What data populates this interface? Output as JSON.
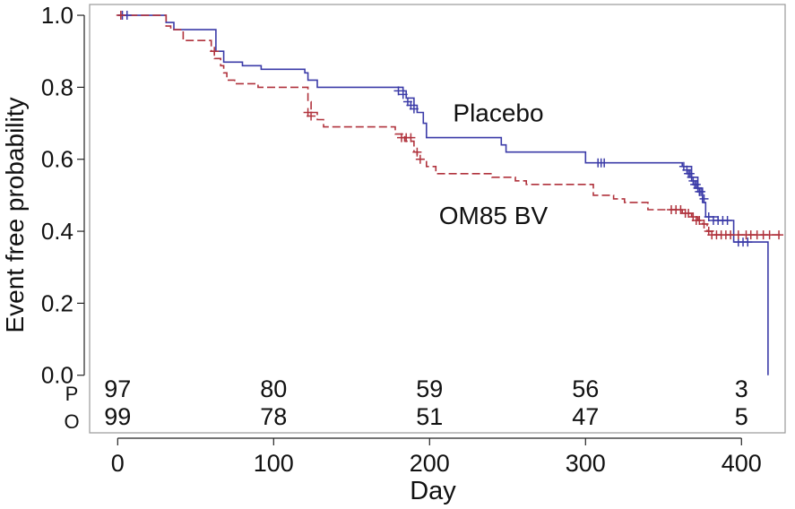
{
  "chart_data": {
    "type": "line",
    "step": true,
    "xlabel": "Day",
    "ylabel": "Event free probability",
    "xlim": [
      -18,
      428
    ],
    "ylim": [
      -0.16,
      1.03
    ],
    "x_ticks": [
      0,
      100,
      200,
      300,
      400
    ],
    "x_tick_labels": [
      "0",
      "100",
      "200",
      "300",
      "400"
    ],
    "y_ticks": [
      0.0,
      0.2,
      0.4,
      0.6,
      0.8,
      1.0
    ],
    "y_tick_labels": [
      "0.0",
      "0.2",
      "0.4",
      "0.6",
      "0.8",
      "1.0"
    ],
    "grid": false,
    "series": [
      {
        "name": "Placebo",
        "color": "#3b3ba8",
        "dash": "solid",
        "points": [
          [
            0,
            1.0
          ],
          [
            31,
            1.0
          ],
          [
            31,
            0.98
          ],
          [
            36,
            0.98
          ],
          [
            36,
            0.96
          ],
          [
            63,
            0.96
          ],
          [
            63,
            0.9
          ],
          [
            68,
            0.9
          ],
          [
            68,
            0.87
          ],
          [
            80,
            0.87
          ],
          [
            80,
            0.86
          ],
          [
            92,
            0.86
          ],
          [
            92,
            0.85
          ],
          [
            120,
            0.85
          ],
          [
            120,
            0.84
          ],
          [
            122,
            0.84
          ],
          [
            122,
            0.82
          ],
          [
            128,
            0.82
          ],
          [
            128,
            0.8
          ],
          [
            183,
            0.8
          ],
          [
            183,
            0.79
          ],
          [
            185,
            0.79
          ],
          [
            185,
            0.77
          ],
          [
            190,
            0.77
          ],
          [
            190,
            0.75
          ],
          [
            192,
            0.75
          ],
          [
            192,
            0.73
          ],
          [
            196,
            0.73
          ],
          [
            196,
            0.7
          ],
          [
            198,
            0.7
          ],
          [
            198,
            0.66
          ],
          [
            246,
            0.66
          ],
          [
            246,
            0.64
          ],
          [
            249,
            0.64
          ],
          [
            249,
            0.62
          ],
          [
            300,
            0.62
          ],
          [
            300,
            0.59
          ],
          [
            362,
            0.59
          ],
          [
            362,
            0.58
          ],
          [
            368,
            0.58
          ],
          [
            368,
            0.55
          ],
          [
            372,
            0.55
          ],
          [
            372,
            0.52
          ],
          [
            375,
            0.52
          ],
          [
            375,
            0.48
          ],
          [
            377,
            0.48
          ],
          [
            377,
            0.44
          ],
          [
            385,
            0.44
          ],
          [
            385,
            0.43
          ],
          [
            395,
            0.43
          ],
          [
            395,
            0.37
          ],
          [
            417,
            0.37
          ],
          [
            417,
            0.0
          ]
        ],
        "censored": [
          [
            3,
            1.0
          ],
          [
            6,
            1.0
          ],
          [
            180,
            0.79
          ],
          [
            183,
            0.78
          ],
          [
            186,
            0.76
          ],
          [
            188,
            0.75
          ],
          [
            190,
            0.74
          ],
          [
            308,
            0.59
          ],
          [
            310,
            0.59
          ],
          [
            312,
            0.59
          ],
          [
            363,
            0.58
          ],
          [
            365,
            0.57
          ],
          [
            366,
            0.56
          ],
          [
            367,
            0.56
          ],
          [
            368,
            0.55
          ],
          [
            369,
            0.54
          ],
          [
            370,
            0.53
          ],
          [
            371,
            0.53
          ],
          [
            372,
            0.52
          ],
          [
            373,
            0.51
          ],
          [
            374,
            0.51
          ],
          [
            376,
            0.49
          ],
          [
            379,
            0.44
          ],
          [
            382,
            0.43
          ],
          [
            385,
            0.43
          ],
          [
            388,
            0.43
          ],
          [
            391,
            0.43
          ],
          [
            398,
            0.37
          ],
          [
            401,
            0.37
          ],
          [
            404,
            0.37
          ]
        ],
        "at_risk": [
          97,
          80,
          59,
          56,
          3
        ],
        "at_risk_row_label": "P"
      },
      {
        "name": "OM85 BV",
        "color": "#b0323c",
        "dash": "dashed",
        "points": [
          [
            0,
            1.0
          ],
          [
            31,
            1.0
          ],
          [
            31,
            0.97
          ],
          [
            34,
            0.97
          ],
          [
            34,
            0.96
          ],
          [
            42,
            0.96
          ],
          [
            42,
            0.93
          ],
          [
            60,
            0.93
          ],
          [
            60,
            0.9
          ],
          [
            62,
            0.9
          ],
          [
            62,
            0.88
          ],
          [
            66,
            0.88
          ],
          [
            66,
            0.86
          ],
          [
            68,
            0.86
          ],
          [
            68,
            0.84
          ],
          [
            70,
            0.84
          ],
          [
            70,
            0.82
          ],
          [
            75,
            0.82
          ],
          [
            75,
            0.81
          ],
          [
            90,
            0.81
          ],
          [
            90,
            0.8
          ],
          [
            122,
            0.8
          ],
          [
            122,
            0.76
          ],
          [
            124,
            0.76
          ],
          [
            124,
            0.73
          ],
          [
            128,
            0.73
          ],
          [
            128,
            0.71
          ],
          [
            132,
            0.71
          ],
          [
            132,
            0.69
          ],
          [
            178,
            0.69
          ],
          [
            178,
            0.67
          ],
          [
            184,
            0.67
          ],
          [
            184,
            0.65
          ],
          [
            190,
            0.65
          ],
          [
            190,
            0.62
          ],
          [
            192,
            0.62
          ],
          [
            192,
            0.6
          ],
          [
            198,
            0.6
          ],
          [
            198,
            0.58
          ],
          [
            204,
            0.58
          ],
          [
            204,
            0.56
          ],
          [
            240,
            0.56
          ],
          [
            240,
            0.55
          ],
          [
            255,
            0.55
          ],
          [
            255,
            0.54
          ],
          [
            262,
            0.54
          ],
          [
            262,
            0.53
          ],
          [
            305,
            0.53
          ],
          [
            305,
            0.5
          ],
          [
            318,
            0.5
          ],
          [
            318,
            0.49
          ],
          [
            325,
            0.49
          ],
          [
            325,
            0.48
          ],
          [
            340,
            0.48
          ],
          [
            340,
            0.46
          ],
          [
            362,
            0.46
          ],
          [
            362,
            0.45
          ],
          [
            368,
            0.45
          ],
          [
            368,
            0.44
          ],
          [
            372,
            0.44
          ],
          [
            372,
            0.43
          ],
          [
            375,
            0.43
          ],
          [
            375,
            0.42
          ],
          [
            378,
            0.42
          ],
          [
            378,
            0.4
          ],
          [
            382,
            0.4
          ],
          [
            382,
            0.39
          ],
          [
            425,
            0.39
          ]
        ],
        "censored": [
          [
            2,
            1.0
          ],
          [
            62,
            0.9
          ],
          [
            122,
            0.73
          ],
          [
            124,
            0.72
          ],
          [
            182,
            0.66
          ],
          [
            185,
            0.66
          ],
          [
            188,
            0.66
          ],
          [
            192,
            0.62
          ],
          [
            194,
            0.6
          ],
          [
            355,
            0.46
          ],
          [
            358,
            0.46
          ],
          [
            361,
            0.46
          ],
          [
            364,
            0.45
          ],
          [
            366,
            0.45
          ],
          [
            369,
            0.44
          ],
          [
            371,
            0.43
          ],
          [
            373,
            0.43
          ],
          [
            376,
            0.42
          ],
          [
            379,
            0.4
          ],
          [
            381,
            0.39
          ],
          [
            384,
            0.39
          ],
          [
            387,
            0.39
          ],
          [
            390,
            0.39
          ],
          [
            393,
            0.39
          ],
          [
            398,
            0.39
          ],
          [
            403,
            0.39
          ],
          [
            406,
            0.39
          ],
          [
            410,
            0.39
          ],
          [
            414,
            0.39
          ],
          [
            418,
            0.39
          ],
          [
            424,
            0.39
          ]
        ],
        "at_risk": [
          99,
          78,
          51,
          47,
          5
        ],
        "at_risk_row_label": "O"
      }
    ],
    "annotations": [
      {
        "text": "Placebo",
        "x": 215,
        "y": 0.705
      },
      {
        "text": "OM85 BV",
        "x": 206,
        "y": 0.42
      }
    ],
    "at_risk_days": [
      0,
      100,
      200,
      300,
      400
    ]
  }
}
